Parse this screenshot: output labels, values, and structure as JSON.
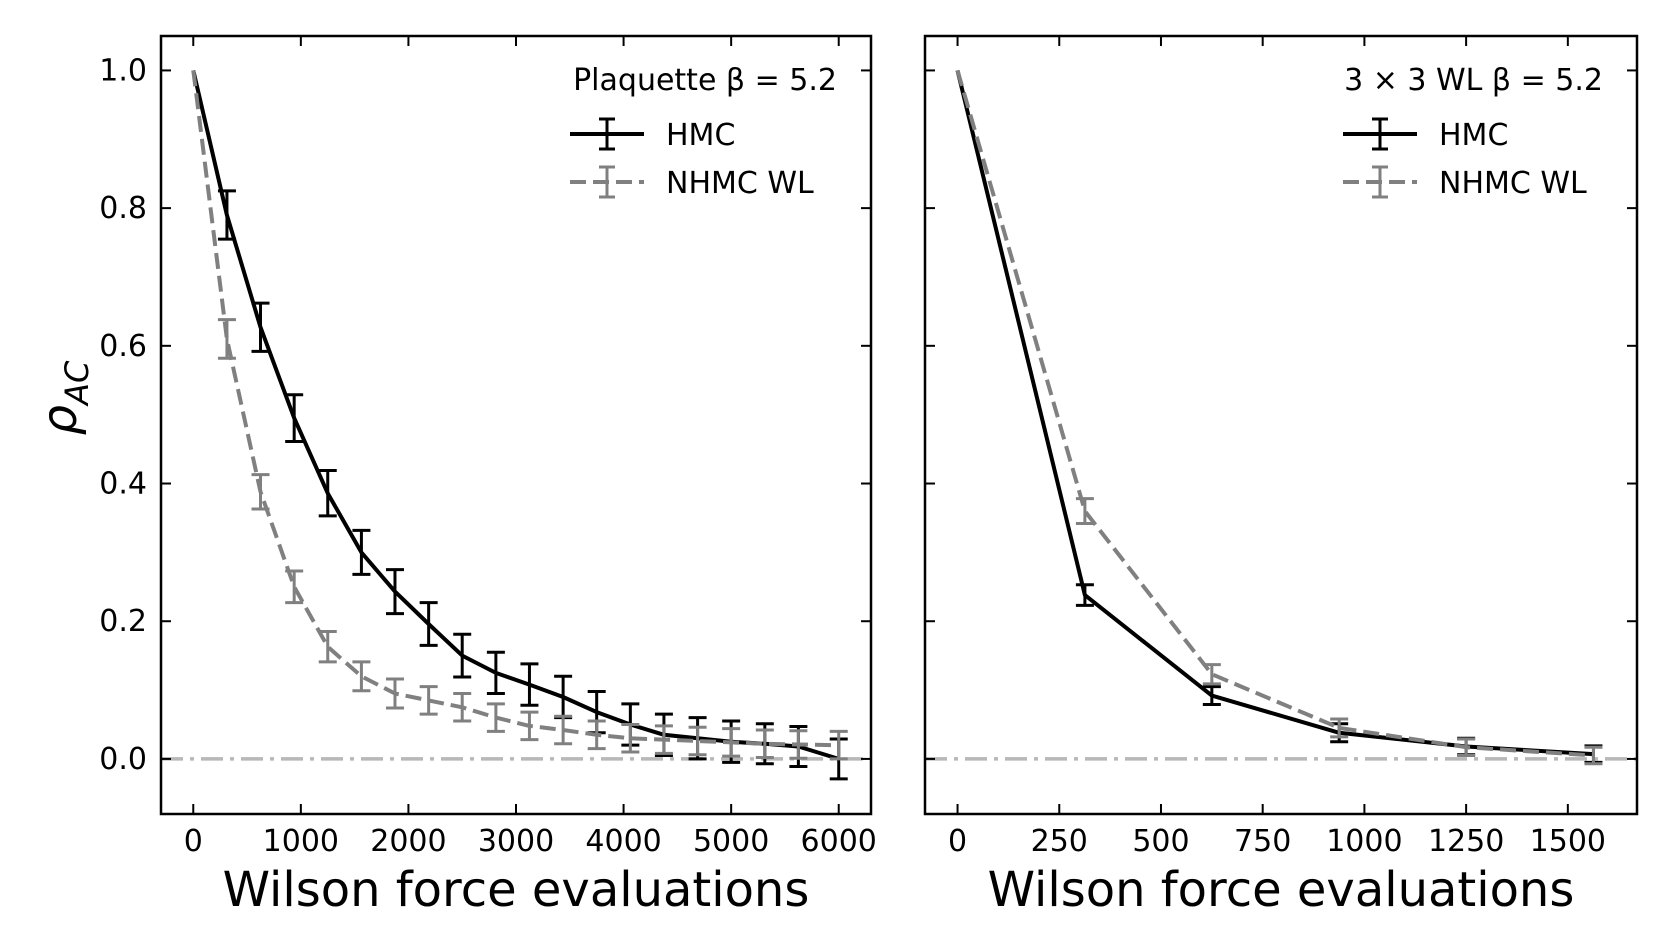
{
  "chart_data": [
    {
      "type": "line",
      "panel": "left",
      "title": "",
      "annotation": "Plaquette β = 5.2",
      "xlabel": "Wilson force evaluations",
      "ylabel": "ρ",
      "ylabel_sub": "AC",
      "xlim": [
        -300,
        6300
      ],
      "ylim": [
        -0.08,
        1.05
      ],
      "xticks": [
        0,
        1000,
        2000,
        3000,
        4000,
        5000,
        6000
      ],
      "xtick_labels": [
        "0",
        "1000",
        "2000",
        "3000",
        "4000",
        "5000",
        "6000"
      ],
      "yticks": [
        0.0,
        0.2,
        0.4,
        0.6,
        0.8,
        1.0
      ],
      "ytick_labels": [
        "0.0",
        "0.2",
        "0.4",
        "0.6",
        "0.8",
        "1.0"
      ],
      "reference_line": 0.0,
      "legend_position": "top-right",
      "series": [
        {
          "name": "HMC",
          "color": "#000000",
          "dash": "solid",
          "x": [
            0,
            313,
            625,
            938,
            1250,
            1563,
            1875,
            2188,
            2500,
            2813,
            3125,
            3438,
            3750,
            4063,
            4375,
            4688,
            5000,
            5313,
            5625,
            6000
          ],
          "y": [
            1.0,
            0.79,
            0.627,
            0.495,
            0.386,
            0.3,
            0.243,
            0.196,
            0.15,
            0.125,
            0.108,
            0.09,
            0.068,
            0.05,
            0.035,
            0.03,
            0.025,
            0.022,
            0.018,
            0.0
          ],
          "err": [
            0.0,
            0.035,
            0.035,
            0.034,
            0.033,
            0.032,
            0.032,
            0.031,
            0.031,
            0.03,
            0.03,
            0.03,
            0.03,
            0.03,
            0.03,
            0.03,
            0.03,
            0.029,
            0.029,
            0.029
          ]
        },
        {
          "name": "NHMC WL",
          "color": "#808080",
          "dash": "dashed",
          "x": [
            0,
            313,
            625,
            938,
            1250,
            1563,
            1875,
            2188,
            2500,
            2813,
            3125,
            3438,
            3750,
            4063,
            4375,
            4688,
            5000,
            5313,
            5625,
            6000
          ],
          "y": [
            1.0,
            0.61,
            0.388,
            0.25,
            0.163,
            0.12,
            0.095,
            0.085,
            0.075,
            0.06,
            0.048,
            0.042,
            0.035,
            0.03,
            0.028,
            0.026,
            0.024,
            0.022,
            0.021,
            0.02
          ],
          "err": [
            0.0,
            0.028,
            0.025,
            0.023,
            0.022,
            0.021,
            0.021,
            0.02,
            0.02,
            0.02,
            0.02,
            0.02,
            0.02,
            0.02,
            0.02,
            0.02,
            0.02,
            0.02,
            0.02,
            0.02
          ]
        }
      ]
    },
    {
      "type": "line",
      "panel": "right",
      "title": "",
      "annotation": "3 × 3 WL β = 5.2",
      "xlabel": "Wilson force evaluations",
      "ylabel": "",
      "xlim": [
        -80,
        1670
      ],
      "ylim": [
        -0.08,
        1.05
      ],
      "xticks": [
        0,
        250,
        500,
        750,
        1000,
        1250,
        1500
      ],
      "xtick_labels": [
        "0",
        "250",
        "500",
        "750",
        "1000",
        "1250",
        "1500"
      ],
      "yticks": [
        0.0,
        0.2,
        0.4,
        0.6,
        0.8,
        1.0
      ],
      "ytick_labels": [],
      "reference_line": 0.0,
      "legend_position": "top-right",
      "series": [
        {
          "name": "HMC",
          "color": "#000000",
          "dash": "solid",
          "x": [
            0,
            313,
            625,
            938,
            1250,
            1563
          ],
          "y": [
            1.0,
            0.238,
            0.092,
            0.038,
            0.018,
            0.007
          ],
          "err": [
            0.0,
            0.015,
            0.013,
            0.013,
            0.012,
            0.012
          ]
        },
        {
          "name": "NHMC WL",
          "color": "#808080",
          "dash": "dashed",
          "x": [
            0,
            313,
            625,
            938,
            1250,
            1563
          ],
          "y": [
            1.0,
            0.36,
            0.123,
            0.045,
            0.017,
            0.005
          ],
          "err": [
            0.0,
            0.018,
            0.014,
            0.013,
            0.012,
            0.012
          ]
        }
      ]
    }
  ]
}
